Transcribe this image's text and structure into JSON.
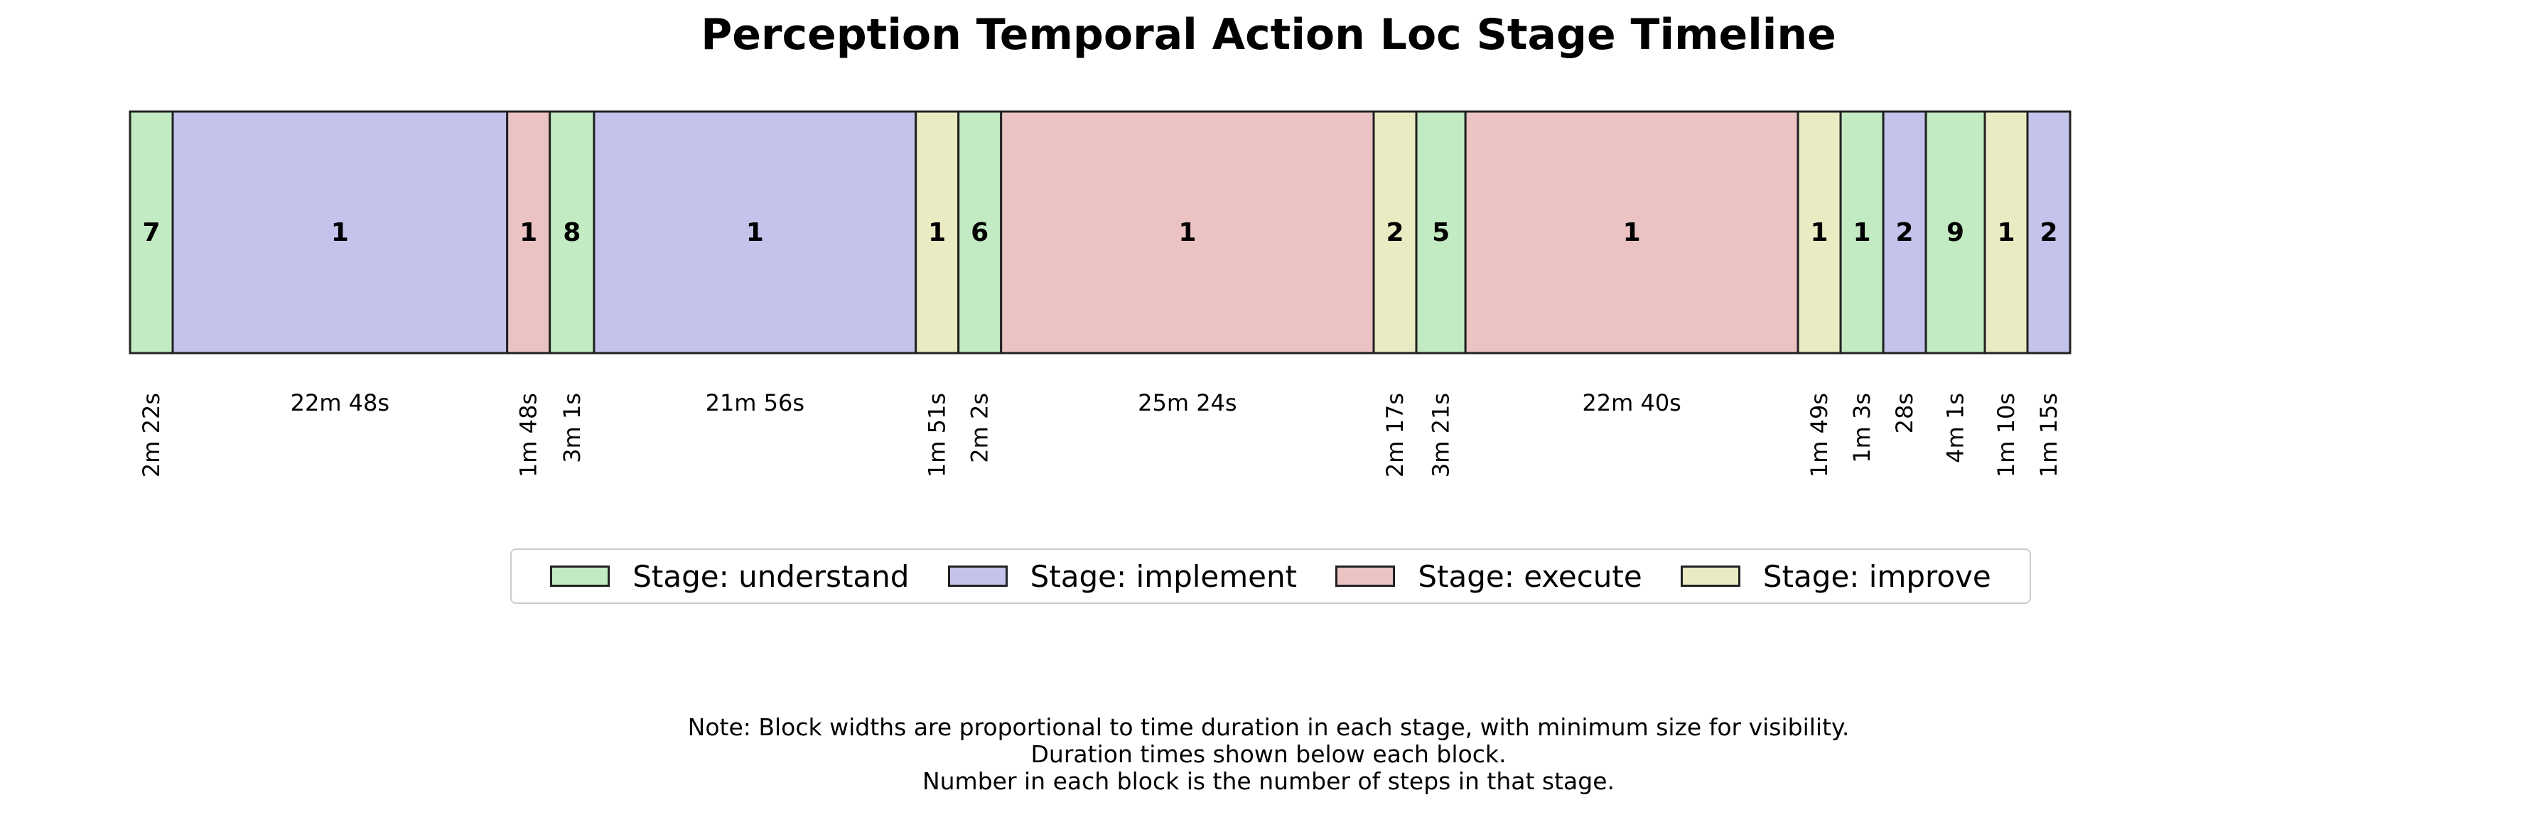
{
  "chart_data": {
    "type": "timeline",
    "title": "Perception Temporal Action Loc Stage Timeline",
    "stage_colors": {
      "understand": "#c3ebc3",
      "implement": "#c3c3eb",
      "execute": "#ebc3c3",
      "improve": "#ebebc3"
    },
    "legend": [
      {
        "stage": "understand",
        "label": "Stage: understand"
      },
      {
        "stage": "implement",
        "label": "Stage: implement"
      },
      {
        "stage": "execute",
        "label": "Stage: execute"
      },
      {
        "stage": "improve",
        "label": "Stage: improve"
      }
    ],
    "legend_position": "below",
    "blocks": [
      {
        "stage": "understand",
        "steps": "7",
        "duration": "2m 22s"
      },
      {
        "stage": "implement",
        "steps": "1",
        "duration": "22m 48s"
      },
      {
        "stage": "execute",
        "steps": "1",
        "duration": "1m 48s"
      },
      {
        "stage": "understand",
        "steps": "8",
        "duration": "3m 1s"
      },
      {
        "stage": "implement",
        "steps": "1",
        "duration": "21m 56s"
      },
      {
        "stage": "improve",
        "steps": "1",
        "duration": "1m 51s"
      },
      {
        "stage": "understand",
        "steps": "6",
        "duration": "2m 2s"
      },
      {
        "stage": "execute",
        "steps": "1",
        "duration": "25m 24s"
      },
      {
        "stage": "improve",
        "steps": "2",
        "duration": "2m 17s"
      },
      {
        "stage": "understand",
        "steps": "5",
        "duration": "3m 21s"
      },
      {
        "stage": "execute",
        "steps": "1",
        "duration": "22m 40s"
      },
      {
        "stage": "improve",
        "steps": "1",
        "duration": "1m 49s"
      },
      {
        "stage": "understand",
        "steps": "1",
        "duration": "1m 3s"
      },
      {
        "stage": "implement",
        "steps": "2",
        "duration": "28s"
      },
      {
        "stage": "understand",
        "steps": "9",
        "duration": "4m 1s"
      },
      {
        "stage": "improve",
        "steps": "1",
        "duration": "1m 10s"
      },
      {
        "stage": "implement",
        "steps": "2",
        "duration": "1m 15s"
      }
    ],
    "notes": [
      "Note: Block widths are proportional to time duration in each stage, with minimum size for visibility.",
      "Duration times shown below each block.",
      "Number in each block is the number of steps in that stage."
    ]
  }
}
